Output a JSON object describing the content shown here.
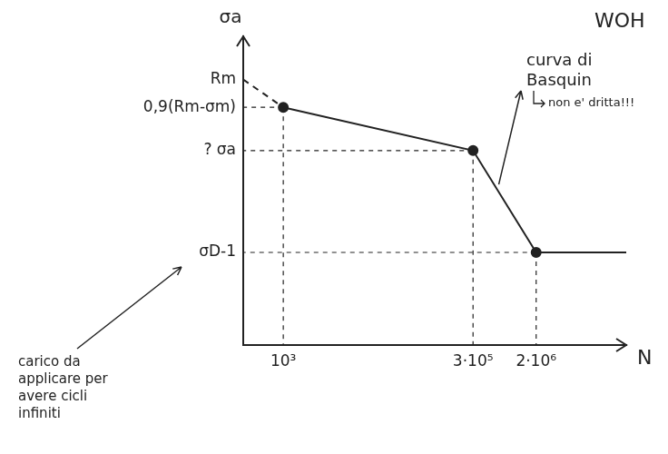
{
  "chart_data": {
    "type": "line",
    "title": "WOH",
    "y_label": "σa",
    "x_label": "N",
    "log": "x",
    "grid": false,
    "xlim": [
      300,
      30000000
    ],
    "xticks": [
      {
        "value": 1000,
        "label": "10³"
      },
      {
        "value": 300000,
        "label": "3·10⁵"
      },
      {
        "value": 2000000,
        "label": "2·10⁶"
      }
    ],
    "ylim": [
      0,
      100
    ],
    "yticks": [
      {
        "value": 30,
        "label": "σD-1"
      },
      {
        "value": 63,
        "label": "? σa"
      },
      {
        "value": 77,
        "label": "0,9(Rm-σm)"
      },
      {
        "value": 86,
        "label": "Rm"
      }
    ],
    "series": [
      {
        "x": [
          300,
          1000
        ],
        "values": [
          86,
          77
        ],
        "line_style": "dashed",
        "marker": "none",
        "color": "#222222"
      },
      {
        "x": [
          1000,
          300000,
          2000000,
          30000000
        ],
        "values": [
          77,
          63,
          30,
          30
        ],
        "line_style": "solid",
        "marker": "none",
        "color": "#222222"
      },
      {
        "type": "scatter",
        "x": [
          1000,
          300000,
          2000000
        ],
        "values": [
          77,
          63,
          30
        ],
        "line_style": "none",
        "marker": "circle",
        "color": "#222222"
      }
    ],
    "annotations": [
      {
        "text": "curva di Basquin"
      },
      {
        "text": "non e' dritta!!!"
      },
      {
        "text": "carico da applicare per avere cicli infiniti"
      }
    ]
  }
}
